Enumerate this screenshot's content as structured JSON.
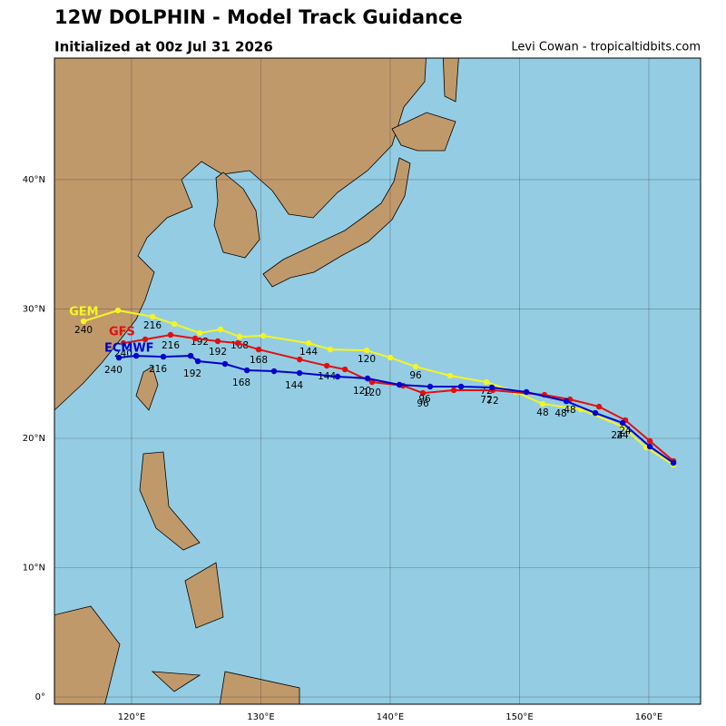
{
  "map": {
    "type": "map",
    "title": "12W DOLPHIN - Model Track Guidance",
    "subtitle": "Initialized at 00z Jul 31 2026",
    "credit": "Levi Cowan - tropicaltidbits.com",
    "xlim": [
      114.04,
      164
    ],
    "ylim": [
      -0.56,
      49.4
    ],
    "xticks": [
      {
        "value": 120,
        "label": "120°E"
      },
      {
        "value": 130,
        "label": "130°E"
      },
      {
        "value": 140,
        "label": "140°E"
      },
      {
        "value": 150,
        "label": "150°E"
      },
      {
        "value": 160,
        "label": "160°E"
      }
    ],
    "yticks": [
      {
        "value": 0,
        "label": "0°"
      },
      {
        "value": 10,
        "label": "10°N"
      },
      {
        "value": 20,
        "label": "20°N"
      },
      {
        "value": 30,
        "label": "30°N"
      },
      {
        "value": 40,
        "label": "40°N"
      }
    ],
    "grid": true,
    "models": [
      {
        "name": "GEM",
        "color": "#f5f522",
        "hours": [
          0,
          12,
          24,
          36,
          48,
          60,
          72,
          84,
          96,
          108,
          120,
          132,
          144,
          156,
          168,
          180,
          192,
          204,
          216,
          228,
          240
        ],
        "lon": [
          161.9,
          159.79,
          157.97,
          154.74,
          151.79,
          149.69,
          147.44,
          144.64,
          141.97,
          140.0,
          138.18,
          135.37,
          133.69,
          130.18,
          128.36,
          126.88,
          125.27,
          123.3,
          121.62,
          118.95,
          116.29
        ],
        "lat": [
          17.96,
          19.29,
          20.91,
          22.24,
          22.66,
          23.58,
          24.35,
          24.84,
          25.54,
          26.24,
          26.8,
          26.87,
          27.36,
          27.93,
          27.86,
          28.42,
          28.14,
          28.84,
          29.4,
          29.89,
          29.05
        ]
      },
      {
        "name": "GFS",
        "color": "#e01010",
        "hours": [
          0,
          12,
          24,
          36,
          48,
          60,
          72,
          84,
          96,
          108,
          120,
          132,
          144,
          156,
          168,
          180,
          192,
          204,
          216,
          228,
          240
        ],
        "lon": [
          161.9,
          160.08,
          158.18,
          156.15,
          153.9,
          151.93,
          147.93,
          144.92,
          142.53,
          140.99,
          138.6,
          136.5,
          135.1,
          133.0,
          129.83,
          128.22,
          126.67,
          124.92,
          123.02,
          121.06,
          119.37
        ],
        "lat": [
          18.24,
          19.79,
          21.4,
          22.45,
          23.01,
          23.36,
          23.72,
          23.72,
          23.5,
          24.07,
          24.35,
          25.33,
          25.61,
          26.1,
          26.87,
          27.36,
          27.51,
          27.72,
          28.0,
          27.65,
          27.36
        ]
      },
      {
        "name": "ECMWF",
        "color": "#0000cc",
        "hours": [
          0,
          12,
          24,
          36,
          48,
          60,
          72,
          84,
          96,
          108,
          120,
          132,
          144,
          156,
          168,
          180,
          192,
          204,
          216,
          228,
          240
        ],
        "lon": [
          161.9,
          160.08,
          157.97,
          155.86,
          153.62,
          150.53,
          147.86,
          145.48,
          143.09,
          140.71,
          138.25,
          135.93,
          132.99,
          131.02,
          128.92,
          127.23,
          125.13,
          124.57,
          122.46,
          120.36,
          119.02
        ],
        "lat": [
          18.1,
          19.36,
          21.19,
          21.96,
          22.87,
          23.58,
          23.93,
          24.0,
          24.0,
          24.14,
          24.63,
          24.77,
          25.05,
          25.19,
          25.26,
          25.75,
          25.96,
          26.38,
          26.31,
          26.38,
          26.24
        ]
      }
    ]
  }
}
